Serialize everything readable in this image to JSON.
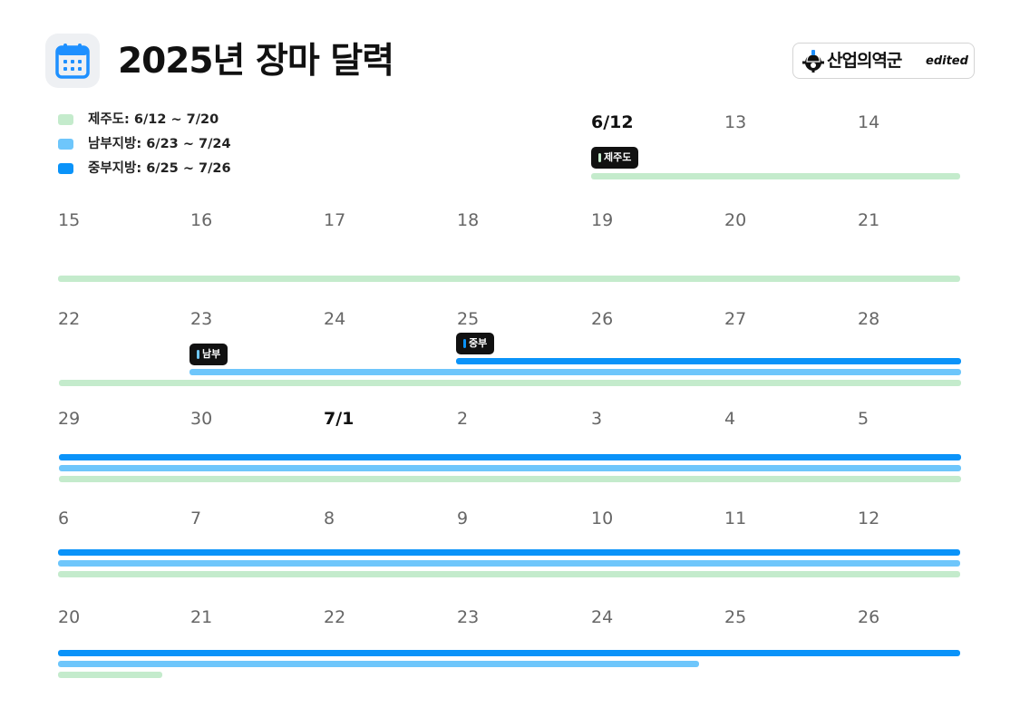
{
  "header": {
    "title": "2025년 장마 달력",
    "icon": "calendar-icon",
    "accent": "#1e90ff"
  },
  "logo": {
    "name": "산업의역군",
    "suffix": "edited",
    "icon": "hardhat-gear-icon"
  },
  "legend": [
    {
      "label": "제주도: 6/12 ~ 7/20",
      "color": "#c4ebcc"
    },
    {
      "label": "남부지방: 6/23 ~ 7/24",
      "color": "#6ec6fb"
    },
    {
      "label": "중부지방: 6/25 ~ 7/26",
      "color": "#0a93f9"
    }
  ],
  "weeks": [
    {
      "days": [
        "",
        "",
        "",
        "",
        "6/12",
        "13",
        "14"
      ],
      "bold": [
        4
      ]
    },
    {
      "days": [
        "15",
        "16",
        "17",
        "18",
        "19",
        "20",
        "21"
      ],
      "bold": []
    },
    {
      "days": [
        "22",
        "23",
        "24",
        "25",
        "26",
        "27",
        "28"
      ],
      "bold": []
    },
    {
      "days": [
        "29",
        "30",
        "7/1",
        "2",
        "3",
        "4",
        "5"
      ],
      "bold": [
        2
      ]
    },
    {
      "days": [
        "6",
        "7",
        "8",
        "9",
        "10",
        "11",
        "12"
      ],
      "bold": []
    },
    {
      "days": [
        "20",
        "21",
        "22",
        "23",
        "24",
        "25",
        "26"
      ],
      "bold": []
    }
  ],
  "tags": [
    {
      "label": "제주도",
      "dot_color": "#c4ebcc"
    },
    {
      "label": "남부",
      "dot_color": "#6ec6fb"
    },
    {
      "label": "중부",
      "dot_color": "#0a93f9"
    }
  ]
}
